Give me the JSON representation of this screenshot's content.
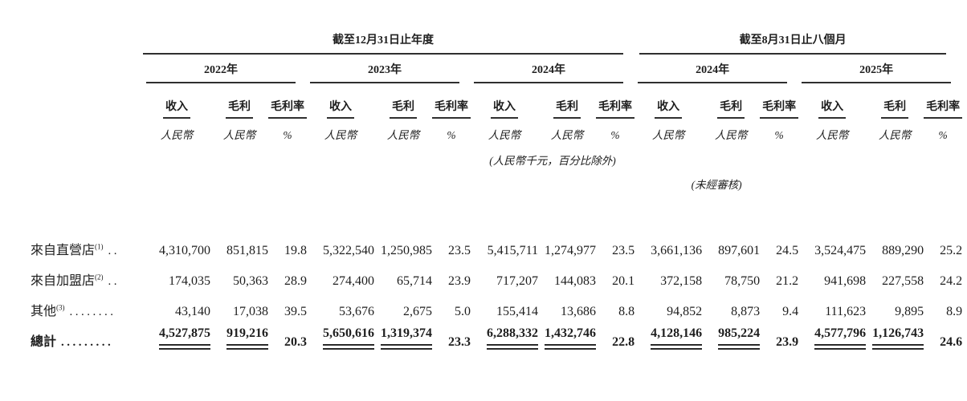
{
  "document": {
    "background": "#ffffff",
    "text_color": "#1e1e1e",
    "rule_color": "#2f2f2f"
  },
  "table": {
    "period_groups": [
      {
        "label": "截至12月31日止年度"
      },
      {
        "label": "截至8月31日止八個月"
      }
    ],
    "year_columns": [
      "2022年",
      "2023年",
      "2024年",
      "2024年",
      "2025年"
    ],
    "metric_headers": {
      "revenue": "收入",
      "gross_profit": "毛利",
      "gross_margin": "毛利率"
    },
    "unit_labels": {
      "currency": "人民幣",
      "percent": "%"
    },
    "notes": {
      "units": "(人民幣千元，百分比除外)",
      "unaudited": "(未經審核)"
    },
    "rows": [
      {
        "label": "來自直營店",
        "footnote": "(1)",
        "leader_dots": "..",
        "values": [
          "4,310,700",
          "851,815",
          "19.8",
          "5,322,540",
          "1,250,985",
          "23.5",
          "5,415,711",
          "1,274,977",
          "23.5",
          "3,661,136",
          "897,601",
          "24.5",
          "3,524,475",
          "889,290",
          "25.2"
        ]
      },
      {
        "label": "來自加盟店",
        "footnote": "(2)",
        "leader_dots": "..",
        "values": [
          "174,035",
          "50,363",
          "28.9",
          "274,400",
          "65,714",
          "23.9",
          "717,207",
          "144,083",
          "20.1",
          "372,158",
          "78,750",
          "21.2",
          "941,698",
          "227,558",
          "24.2"
        ]
      },
      {
        "label": "其他",
        "footnote": "(3)",
        "leader_dots": "........",
        "values": [
          "43,140",
          "17,038",
          "39.5",
          "53,676",
          "2,675",
          "5.0",
          "155,414",
          "13,686",
          "8.8",
          "94,852",
          "8,873",
          "9.4",
          "111,623",
          "9,895",
          "8.9"
        ]
      }
    ],
    "total_row": {
      "label": "總計",
      "leader_dots": ".........",
      "values": [
        "4,527,875",
        "919,216",
        "20.3",
        "5,650,616",
        "1,319,374",
        "23.3",
        "6,288,332",
        "1,432,746",
        "22.8",
        "4,128,146",
        "985,224",
        "23.9",
        "4,577,796",
        "1,126,743",
        "24.6"
      ]
    }
  }
}
